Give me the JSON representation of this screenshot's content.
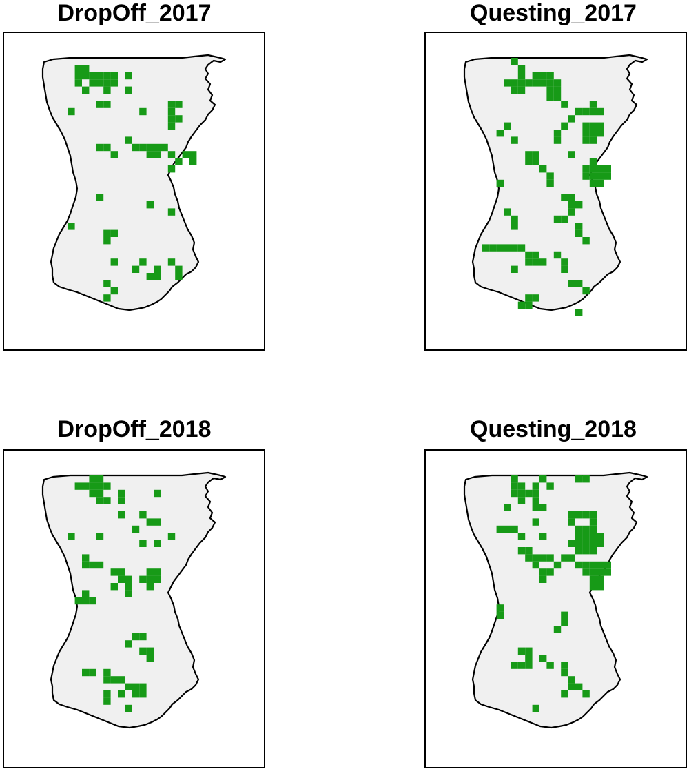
{
  "colors": {
    "background": "#ffffff",
    "land_fill": "#f0f0f0",
    "boundary": "#000000",
    "presence_cells": "#179a17"
  },
  "panels": [
    {
      "title": "DropOff_2017",
      "cells": [
        [
          4,
          1
        ],
        [
          5,
          1
        ],
        [
          4,
          2
        ],
        [
          5,
          2
        ],
        [
          6,
          2
        ],
        [
          7,
          2
        ],
        [
          8,
          2
        ],
        [
          9,
          2
        ],
        [
          4,
          3
        ],
        [
          6,
          3
        ],
        [
          7,
          3
        ],
        [
          8,
          3
        ],
        [
          9,
          3
        ],
        [
          11,
          2
        ],
        [
          5,
          4
        ],
        [
          8,
          4
        ],
        [
          11,
          4
        ],
        [
          3,
          7
        ],
        [
          7,
          6
        ],
        [
          8,
          6
        ],
        [
          13,
          7
        ],
        [
          17,
          6
        ],
        [
          18,
          6
        ],
        [
          17,
          7
        ],
        [
          17,
          8
        ],
        [
          18,
          8
        ],
        [
          17,
          9
        ],
        [
          7,
          12
        ],
        [
          8,
          12
        ],
        [
          11,
          11
        ],
        [
          12,
          12
        ],
        [
          13,
          12
        ],
        [
          14,
          12
        ],
        [
          15,
          12
        ],
        [
          16,
          12
        ],
        [
          14,
          13
        ],
        [
          15,
          13
        ],
        [
          17,
          13
        ],
        [
          19,
          13
        ],
        [
          20,
          13
        ],
        [
          9,
          13
        ],
        [
          18,
          14
        ],
        [
          20,
          14
        ],
        [
          17,
          15
        ],
        [
          7,
          19
        ],
        [
          14,
          20
        ],
        [
          17,
          21
        ],
        [
          3,
          23
        ],
        [
          8,
          24
        ],
        [
          9,
          24
        ],
        [
          8,
          25
        ],
        [
          9,
          28
        ],
        [
          13,
          28
        ],
        [
          12,
          29
        ],
        [
          15,
          29
        ],
        [
          17,
          28
        ],
        [
          14,
          30
        ],
        [
          15,
          30
        ],
        [
          18,
          29
        ],
        [
          18,
          30
        ],
        [
          8,
          31
        ],
        [
          9,
          32
        ],
        [
          8,
          33
        ]
      ]
    },
    {
      "title": "Questing_2017",
      "cells": [
        [
          6,
          0
        ],
        [
          7,
          1
        ],
        [
          7,
          2
        ],
        [
          9,
          2
        ],
        [
          10,
          2
        ],
        [
          11,
          2
        ],
        [
          5,
          3
        ],
        [
          6,
          3
        ],
        [
          7,
          3
        ],
        [
          8,
          3
        ],
        [
          9,
          3
        ],
        [
          10,
          3
        ],
        [
          11,
          3
        ],
        [
          12,
          3
        ],
        [
          6,
          4
        ],
        [
          7,
          4
        ],
        [
          11,
          4
        ],
        [
          12,
          4
        ],
        [
          12,
          5
        ],
        [
          11,
          5
        ],
        [
          13,
          6
        ],
        [
          17,
          6
        ],
        [
          15,
          7
        ],
        [
          16,
          7
        ],
        [
          17,
          7
        ],
        [
          18,
          7
        ],
        [
          14,
          8
        ],
        [
          13,
          9
        ],
        [
          16,
          9
        ],
        [
          17,
          9
        ],
        [
          18,
          9
        ],
        [
          5,
          9
        ],
        [
          4,
          10
        ],
        [
          12,
          10
        ],
        [
          16,
          10
        ],
        [
          17,
          10
        ],
        [
          18,
          10
        ],
        [
          6,
          11
        ],
        [
          12,
          11
        ],
        [
          16,
          11
        ],
        [
          17,
          11
        ],
        [
          8,
          13
        ],
        [
          9,
          13
        ],
        [
          8,
          14
        ],
        [
          9,
          14
        ],
        [
          10,
          15
        ],
        [
          14,
          13
        ],
        [
          17,
          14
        ],
        [
          16,
          15
        ],
        [
          17,
          15
        ],
        [
          18,
          15
        ],
        [
          19,
          15
        ],
        [
          16,
          16
        ],
        [
          17,
          16
        ],
        [
          18,
          16
        ],
        [
          19,
          16
        ],
        [
          17,
          17
        ],
        [
          18,
          17
        ],
        [
          11,
          17
        ],
        [
          11,
          16
        ],
        [
          4,
          17
        ],
        [
          13,
          19
        ],
        [
          14,
          19
        ],
        [
          14,
          20
        ],
        [
          15,
          20
        ],
        [
          14,
          21
        ],
        [
          5,
          21
        ],
        [
          6,
          22
        ],
        [
          6,
          23
        ],
        [
          12,
          22
        ],
        [
          13,
          22
        ],
        [
          15,
          23
        ],
        [
          15,
          24
        ],
        [
          16,
          25
        ],
        [
          2,
          26
        ],
        [
          3,
          26
        ],
        [
          4,
          26
        ],
        [
          5,
          26
        ],
        [
          6,
          26
        ],
        [
          7,
          26
        ],
        [
          8,
          27
        ],
        [
          9,
          27
        ],
        [
          8,
          28
        ],
        [
          9,
          28
        ],
        [
          10,
          28
        ],
        [
          12,
          27
        ],
        [
          13,
          28
        ],
        [
          13,
          29
        ],
        [
          6,
          29
        ],
        [
          14,
          31
        ],
        [
          15,
          31
        ],
        [
          16,
          32
        ],
        [
          8,
          33
        ],
        [
          9,
          33
        ],
        [
          7,
          34
        ],
        [
          8,
          34
        ],
        [
          15,
          35
        ]
      ]
    },
    {
      "title": "DropOff_2018",
      "cells": [
        [
          6,
          0
        ],
        [
          7,
          0
        ],
        [
          4,
          1
        ],
        [
          5,
          1
        ],
        [
          6,
          1
        ],
        [
          7,
          1
        ],
        [
          8,
          1
        ],
        [
          6,
          2
        ],
        [
          7,
          2
        ],
        [
          7,
          3
        ],
        [
          8,
          3
        ],
        [
          10,
          2
        ],
        [
          10,
          3
        ],
        [
          15,
          2
        ],
        [
          10,
          5
        ],
        [
          13,
          5
        ],
        [
          14,
          6
        ],
        [
          15,
          6
        ],
        [
          12,
          7
        ],
        [
          3,
          8
        ],
        [
          7,
          8
        ],
        [
          15,
          9
        ],
        [
          17,
          8
        ],
        [
          13,
          9
        ],
        [
          5,
          11
        ],
        [
          5,
          12
        ],
        [
          6,
          12
        ],
        [
          7,
          12
        ],
        [
          9,
          13
        ],
        [
          10,
          13
        ],
        [
          10,
          14
        ],
        [
          11,
          14
        ],
        [
          11,
          15
        ],
        [
          9,
          15
        ],
        [
          14,
          13
        ],
        [
          15,
          13
        ],
        [
          13,
          14
        ],
        [
          14,
          14
        ],
        [
          15,
          14
        ],
        [
          14,
          15
        ],
        [
          11,
          16
        ],
        [
          5,
          16
        ],
        [
          5,
          17
        ],
        [
          6,
          17
        ],
        [
          4,
          17
        ],
        [
          12,
          22
        ],
        [
          13,
          22
        ],
        [
          11,
          23
        ],
        [
          13,
          24
        ],
        [
          14,
          24
        ],
        [
          14,
          25
        ],
        [
          5,
          27
        ],
        [
          6,
          27
        ],
        [
          8,
          27
        ],
        [
          8,
          28
        ],
        [
          9,
          28
        ],
        [
          10,
          28
        ],
        [
          11,
          29
        ],
        [
          12,
          29
        ],
        [
          13,
          29
        ],
        [
          12,
          30
        ],
        [
          13,
          30
        ],
        [
          10,
          30
        ],
        [
          8,
          30
        ],
        [
          8,
          31
        ],
        [
          11,
          32
        ]
      ]
    },
    {
      "title": "Questing_2018",
      "cells": [
        [
          6,
          0
        ],
        [
          10,
          0
        ],
        [
          15,
          0
        ],
        [
          16,
          0
        ],
        [
          6,
          1
        ],
        [
          7,
          1
        ],
        [
          9,
          1
        ],
        [
          11,
          1
        ],
        [
          6,
          2
        ],
        [
          7,
          2
        ],
        [
          8,
          2
        ],
        [
          9,
          2
        ],
        [
          7,
          3
        ],
        [
          9,
          3
        ],
        [
          5,
          4
        ],
        [
          9,
          4
        ],
        [
          10,
          4
        ],
        [
          14,
          5
        ],
        [
          15,
          5
        ],
        [
          16,
          5
        ],
        [
          17,
          5
        ],
        [
          14,
          6
        ],
        [
          17,
          6
        ],
        [
          15,
          7
        ],
        [
          16,
          7
        ],
        [
          17,
          7
        ],
        [
          15,
          8
        ],
        [
          16,
          8
        ],
        [
          17,
          8
        ],
        [
          18,
          8
        ],
        [
          4,
          7
        ],
        [
          5,
          7
        ],
        [
          6,
          7
        ],
        [
          9,
          6
        ],
        [
          7,
          8
        ],
        [
          10,
          8
        ],
        [
          14,
          9
        ],
        [
          15,
          9
        ],
        [
          16,
          9
        ],
        [
          17,
          9
        ],
        [
          18,
          9
        ],
        [
          15,
          10
        ],
        [
          16,
          10
        ],
        [
          17,
          10
        ],
        [
          7,
          10
        ],
        [
          8,
          10
        ],
        [
          8,
          11
        ],
        [
          9,
          11
        ],
        [
          10,
          11
        ],
        [
          11,
          11
        ],
        [
          12,
          12
        ],
        [
          13,
          11
        ],
        [
          14,
          11
        ],
        [
          15,
          12
        ],
        [
          16,
          12
        ],
        [
          17,
          12
        ],
        [
          18,
          12
        ],
        [
          19,
          12
        ],
        [
          16,
          13
        ],
        [
          17,
          13
        ],
        [
          18,
          13
        ],
        [
          19,
          13
        ],
        [
          9,
          12
        ],
        [
          10,
          13
        ],
        [
          11,
          13
        ],
        [
          10,
          14
        ],
        [
          17,
          14
        ],
        [
          18,
          14
        ],
        [
          17,
          15
        ],
        [
          18,
          15
        ],
        [
          4,
          18
        ],
        [
          4,
          19
        ],
        [
          13,
          19
        ],
        [
          13,
          20
        ],
        [
          12,
          21
        ],
        [
          7,
          24
        ],
        [
          8,
          24
        ],
        [
          8,
          25
        ],
        [
          6,
          26
        ],
        [
          7,
          26
        ],
        [
          8,
          26
        ],
        [
          10,
          25
        ],
        [
          11,
          26
        ],
        [
          13,
          26
        ],
        [
          13,
          27
        ],
        [
          14,
          28
        ],
        [
          14,
          29
        ],
        [
          15,
          29
        ],
        [
          16,
          30
        ],
        [
          13,
          30
        ],
        [
          9,
          32
        ]
      ]
    }
  ]
}
